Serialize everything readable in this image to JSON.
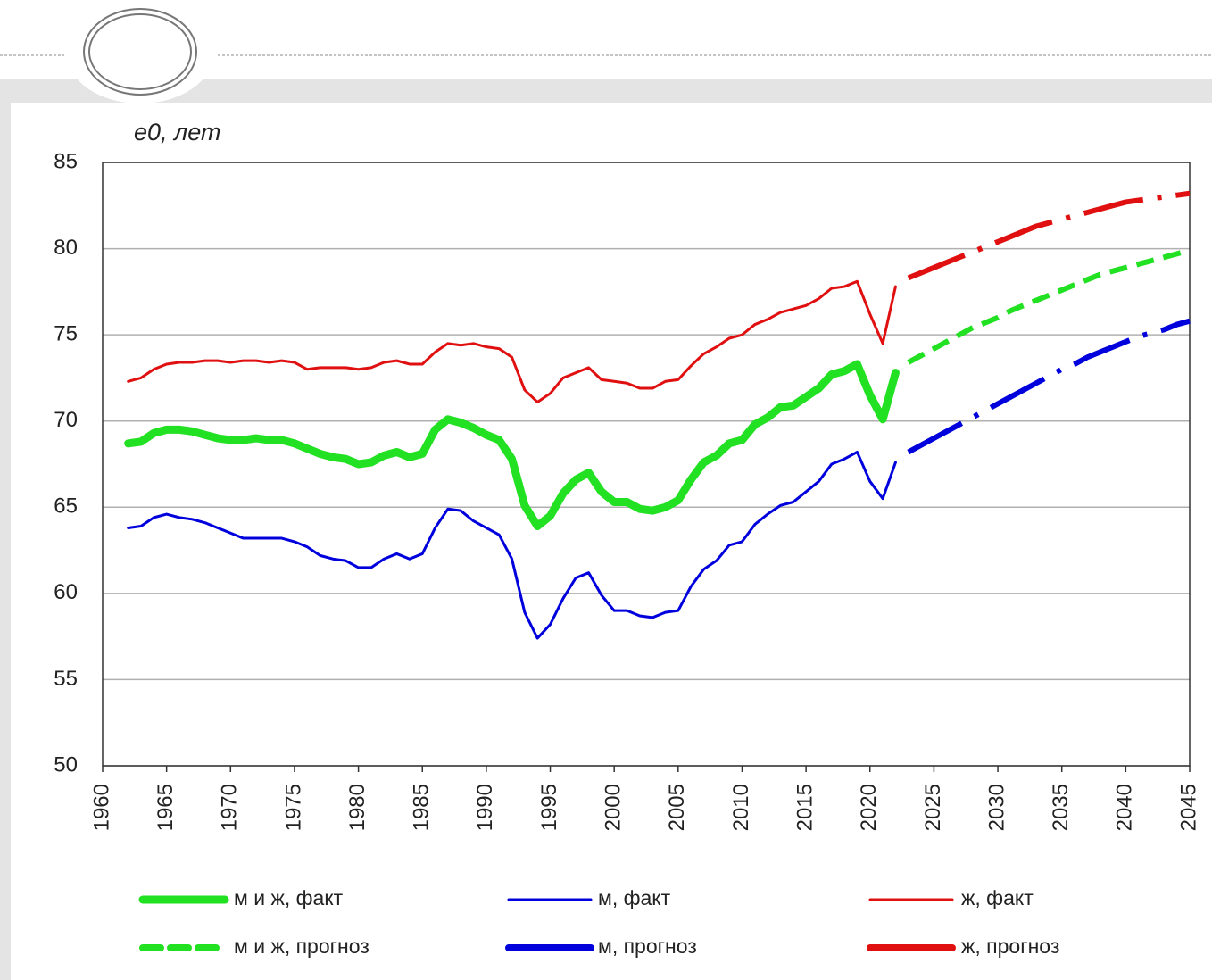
{
  "chart_data": {
    "type": "line",
    "ylabel": "e0, лет",
    "xlim": [
      1960,
      2045
    ],
    "ylim": [
      50,
      85
    ],
    "xticks": [
      1960,
      1965,
      1970,
      1975,
      1980,
      1985,
      1990,
      1995,
      2000,
      2005,
      2010,
      2015,
      2020,
      2025,
      2030,
      2035,
      2040,
      2045
    ],
    "yticks": [
      50,
      55,
      60,
      65,
      70,
      75,
      80,
      85
    ],
    "grid": true,
    "series": [
      {
        "name": "м и ж, факт",
        "color": "#22e022",
        "x": [
          1962,
          1963,
          1964,
          1965,
          1966,
          1967,
          1968,
          1969,
          1970,
          1971,
          1972,
          1973,
          1974,
          1975,
          1976,
          1977,
          1978,
          1979,
          1980,
          1981,
          1982,
          1983,
          1984,
          1985,
          1986,
          1987,
          1988,
          1989,
          1990,
          1991,
          1992,
          1993,
          1994,
          1995,
          1996,
          1997,
          1998,
          1999,
          2000,
          2001,
          2002,
          2003,
          2004,
          2005,
          2006,
          2007,
          2008,
          2009,
          2010,
          2011,
          2012,
          2013,
          2014,
          2015,
          2016,
          2017,
          2018,
          2019,
          2020,
          2021,
          2022
        ],
        "values": [
          68.7,
          68.8,
          69.3,
          69.5,
          69.5,
          69.4,
          69.2,
          69.0,
          68.9,
          68.9,
          69.0,
          68.9,
          68.9,
          68.7,
          68.4,
          68.1,
          67.9,
          67.8,
          67.5,
          67.6,
          68.0,
          68.2,
          67.9,
          68.1,
          69.5,
          70.1,
          69.9,
          69.6,
          69.2,
          68.9,
          67.8,
          65.1,
          63.9,
          64.5,
          65.8,
          66.6,
          67.0,
          65.9,
          65.3,
          65.3,
          64.9,
          64.8,
          65.0,
          65.4,
          66.6,
          67.6,
          68.0,
          68.7,
          68.9,
          69.8,
          70.2,
          70.8,
          70.9,
          71.4,
          71.9,
          72.7,
          72.9,
          73.3,
          71.5,
          70.1,
          72.8
        ]
      },
      {
        "name": "м, факт",
        "color": "#0000dd",
        "x": [
          1962,
          1963,
          1964,
          1965,
          1966,
          1967,
          1968,
          1969,
          1970,
          1971,
          1972,
          1973,
          1974,
          1975,
          1976,
          1977,
          1978,
          1979,
          1980,
          1981,
          1982,
          1983,
          1984,
          1985,
          1986,
          1987,
          1988,
          1989,
          1990,
          1991,
          1992,
          1993,
          1994,
          1995,
          1996,
          1997,
          1998,
          1999,
          2000,
          2001,
          2002,
          2003,
          2004,
          2005,
          2006,
          2007,
          2008,
          2009,
          2010,
          2011,
          2012,
          2013,
          2014,
          2015,
          2016,
          2017,
          2018,
          2019,
          2020,
          2021,
          2022
        ],
        "values": [
          63.8,
          63.9,
          64.4,
          64.6,
          64.4,
          64.3,
          64.1,
          63.8,
          63.5,
          63.2,
          63.2,
          63.2,
          63.2,
          63.0,
          62.7,
          62.2,
          62.0,
          61.9,
          61.5,
          61.5,
          62.0,
          62.3,
          62.0,
          62.3,
          63.8,
          64.9,
          64.8,
          64.2,
          63.8,
          63.4,
          62.0,
          58.9,
          57.4,
          58.2,
          59.7,
          60.9,
          61.2,
          59.9,
          59.0,
          59.0,
          58.7,
          58.6,
          58.9,
          59.0,
          60.4,
          61.4,
          61.9,
          62.8,
          63.0,
          64.0,
          64.6,
          65.1,
          65.3,
          65.9,
          66.5,
          67.5,
          67.8,
          68.2,
          66.5,
          65.5,
          67.6
        ]
      },
      {
        "name": "ж, факт",
        "color": "#e01010",
        "x": [
          1962,
          1963,
          1964,
          1965,
          1966,
          1967,
          1968,
          1969,
          1970,
          1971,
          1972,
          1973,
          1974,
          1975,
          1976,
          1977,
          1978,
          1979,
          1980,
          1981,
          1982,
          1983,
          1984,
          1985,
          1986,
          1987,
          1988,
          1989,
          1990,
          1991,
          1992,
          1993,
          1994,
          1995,
          1996,
          1997,
          1998,
          1999,
          2000,
          2001,
          2002,
          2003,
          2004,
          2005,
          2006,
          2007,
          2008,
          2009,
          2010,
          2011,
          2012,
          2013,
          2014,
          2015,
          2016,
          2017,
          2018,
          2019,
          2020,
          2021,
          2022
        ],
        "values": [
          72.3,
          72.5,
          73.0,
          73.3,
          73.4,
          73.4,
          73.5,
          73.5,
          73.4,
          73.5,
          73.5,
          73.4,
          73.5,
          73.4,
          73.0,
          73.1,
          73.1,
          73.1,
          73.0,
          73.1,
          73.4,
          73.5,
          73.3,
          73.3,
          74.0,
          74.5,
          74.4,
          74.5,
          74.3,
          74.2,
          73.7,
          71.8,
          71.1,
          71.6,
          72.5,
          72.8,
          73.1,
          72.4,
          72.3,
          72.2,
          71.9,
          71.9,
          72.3,
          72.4,
          73.2,
          73.9,
          74.3,
          74.8,
          75.0,
          75.6,
          75.9,
          76.3,
          76.5,
          76.7,
          77.1,
          77.7,
          77.8,
          78.1,
          76.2,
          74.5,
          77.8
        ]
      },
      {
        "name": "м и ж, прогноз",
        "color": "#22e022",
        "dashed": true,
        "x": [
          2023,
          2024,
          2025,
          2026,
          2027,
          2028,
          2029,
          2030,
          2031,
          2032,
          2033,
          2034,
          2035,
          2036,
          2037,
          2038,
          2039,
          2040,
          2041,
          2042,
          2043,
          2044,
          2045
        ],
        "values": [
          73.4,
          73.8,
          74.2,
          74.6,
          75.0,
          75.4,
          75.7,
          76.0,
          76.4,
          76.7,
          77.0,
          77.3,
          77.6,
          77.9,
          78.2,
          78.5,
          78.7,
          78.9,
          79.1,
          79.3,
          79.5,
          79.7,
          79.9
        ]
      },
      {
        "name": "м, прогноз",
        "color": "#0000dd",
        "dashed": true,
        "x": [
          2023,
          2024,
          2025,
          2026,
          2027,
          2028,
          2029,
          2030,
          2031,
          2032,
          2033,
          2034,
          2035,
          2036,
          2037,
          2038,
          2039,
          2040,
          2041,
          2042,
          2043,
          2044,
          2045
        ],
        "values": [
          68.2,
          68.6,
          69.0,
          69.4,
          69.8,
          70.2,
          70.6,
          71.0,
          71.4,
          71.8,
          72.2,
          72.6,
          73.0,
          73.3,
          73.7,
          74.0,
          74.3,
          74.6,
          74.9,
          75.1,
          75.3,
          75.6,
          75.8
        ]
      },
      {
        "name": "ж, прогноз",
        "color": "#e01010",
        "dashed": true,
        "x": [
          2023,
          2024,
          2025,
          2026,
          2027,
          2028,
          2029,
          2030,
          2031,
          2032,
          2033,
          2034,
          2035,
          2036,
          2037,
          2038,
          2039,
          2040,
          2041,
          2042,
          2043,
          2044,
          2045
        ],
        "values": [
          78.3,
          78.6,
          78.9,
          79.2,
          79.5,
          79.8,
          80.1,
          80.4,
          80.7,
          81.0,
          81.3,
          81.5,
          81.7,
          81.9,
          82.1,
          82.3,
          82.5,
          82.7,
          82.8,
          82.9,
          83.0,
          83.1,
          83.2
        ]
      }
    ]
  }
}
